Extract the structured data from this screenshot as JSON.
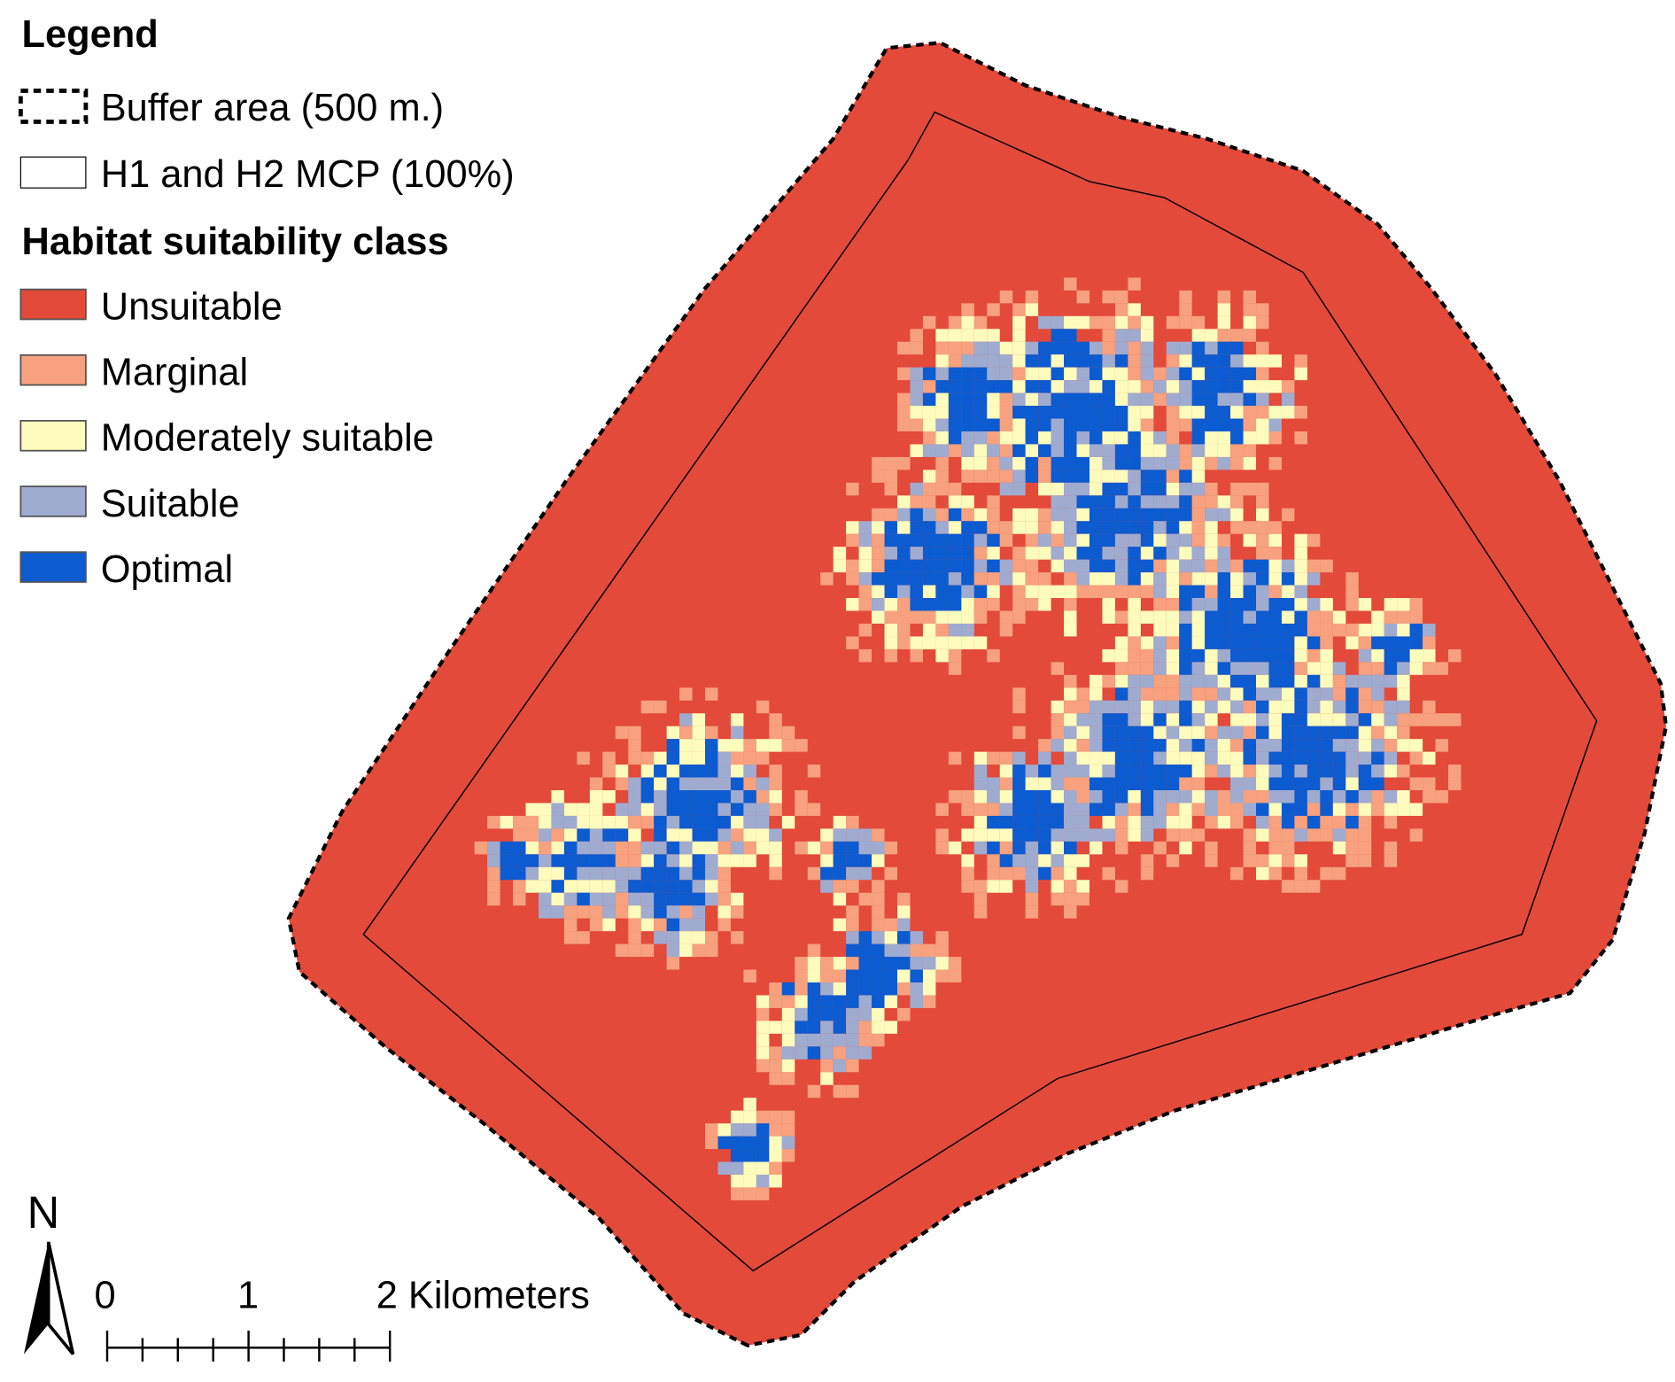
{
  "legend": {
    "title": "Legend",
    "boundaries": [
      {
        "label": "Buffer area (500 m.)",
        "style": "dashed"
      },
      {
        "label": "H1 and H2 MCP (100%)",
        "style": "solid"
      }
    ],
    "class_title": "Habitat suitability class",
    "classes": [
      {
        "label": "Unsuitable",
        "color": "#e34a3a"
      },
      {
        "label": "Marginal",
        "color": "#f7a17e"
      },
      {
        "label": "Moderately suitable",
        "color": "#fdfcbd"
      },
      {
        "label": "Suitable",
        "color": "#a0abd0"
      },
      {
        "label": "Optimal",
        "color": "#0c5bd0"
      }
    ]
  },
  "north_arrow": {
    "label": "N"
  },
  "scale_bar": {
    "labels": [
      "0",
      "1",
      "2 Kilometers"
    ]
  }
}
